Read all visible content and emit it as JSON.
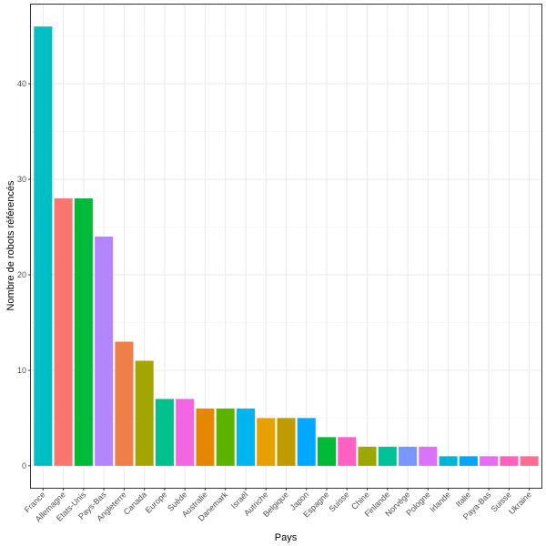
{
  "chart_data": {
    "type": "bar",
    "xlabel": "Pays",
    "ylabel": "Nombre de robots référencés",
    "ylim": [
      -2.3,
      48.3
    ],
    "yticks": [
      0,
      10,
      20,
      30,
      40
    ],
    "grid": true,
    "legend": "none",
    "categories": [
      "France",
      "Allemagne",
      "Etats-Unis",
      "Pays-Bas",
      "Angleterre",
      "Canada",
      "Europe",
      "Suède",
      "Australie",
      "Danemark",
      "Israël",
      "Autriche",
      "Belgique",
      "Japon",
      "Espagne",
      "Suisse",
      "Chine",
      "Finlande",
      "Norvège",
      "Pologne",
      "Irlande",
      "Italie",
      "Paya-Bas",
      "Suisse",
      "Ukraine"
    ],
    "values": [
      46,
      28,
      28,
      24,
      13,
      11,
      7,
      7,
      6,
      6,
      6,
      5,
      5,
      5,
      3,
      3,
      2,
      2,
      2,
      2,
      1,
      1,
      1,
      1,
      1
    ],
    "colors": [
      "#00BFC4",
      "#F8766D",
      "#00BA38",
      "#B385FF",
      "#EF7F49",
      "#A3A500",
      "#00C08B",
      "#F564E3",
      "#E58700",
      "#5BB300",
      "#00B4EF",
      "#E6A000",
      "#C09B00",
      "#00A9FF",
      "#00BA38",
      "#FF61C3",
      "#9EA700",
      "#00C19A",
      "#7997FF",
      "#DB72FB",
      "#00B6D8",
      "#00A5FF",
      "#E76BF3",
      "#FF62BC",
      "#FF6C91"
    ]
  }
}
